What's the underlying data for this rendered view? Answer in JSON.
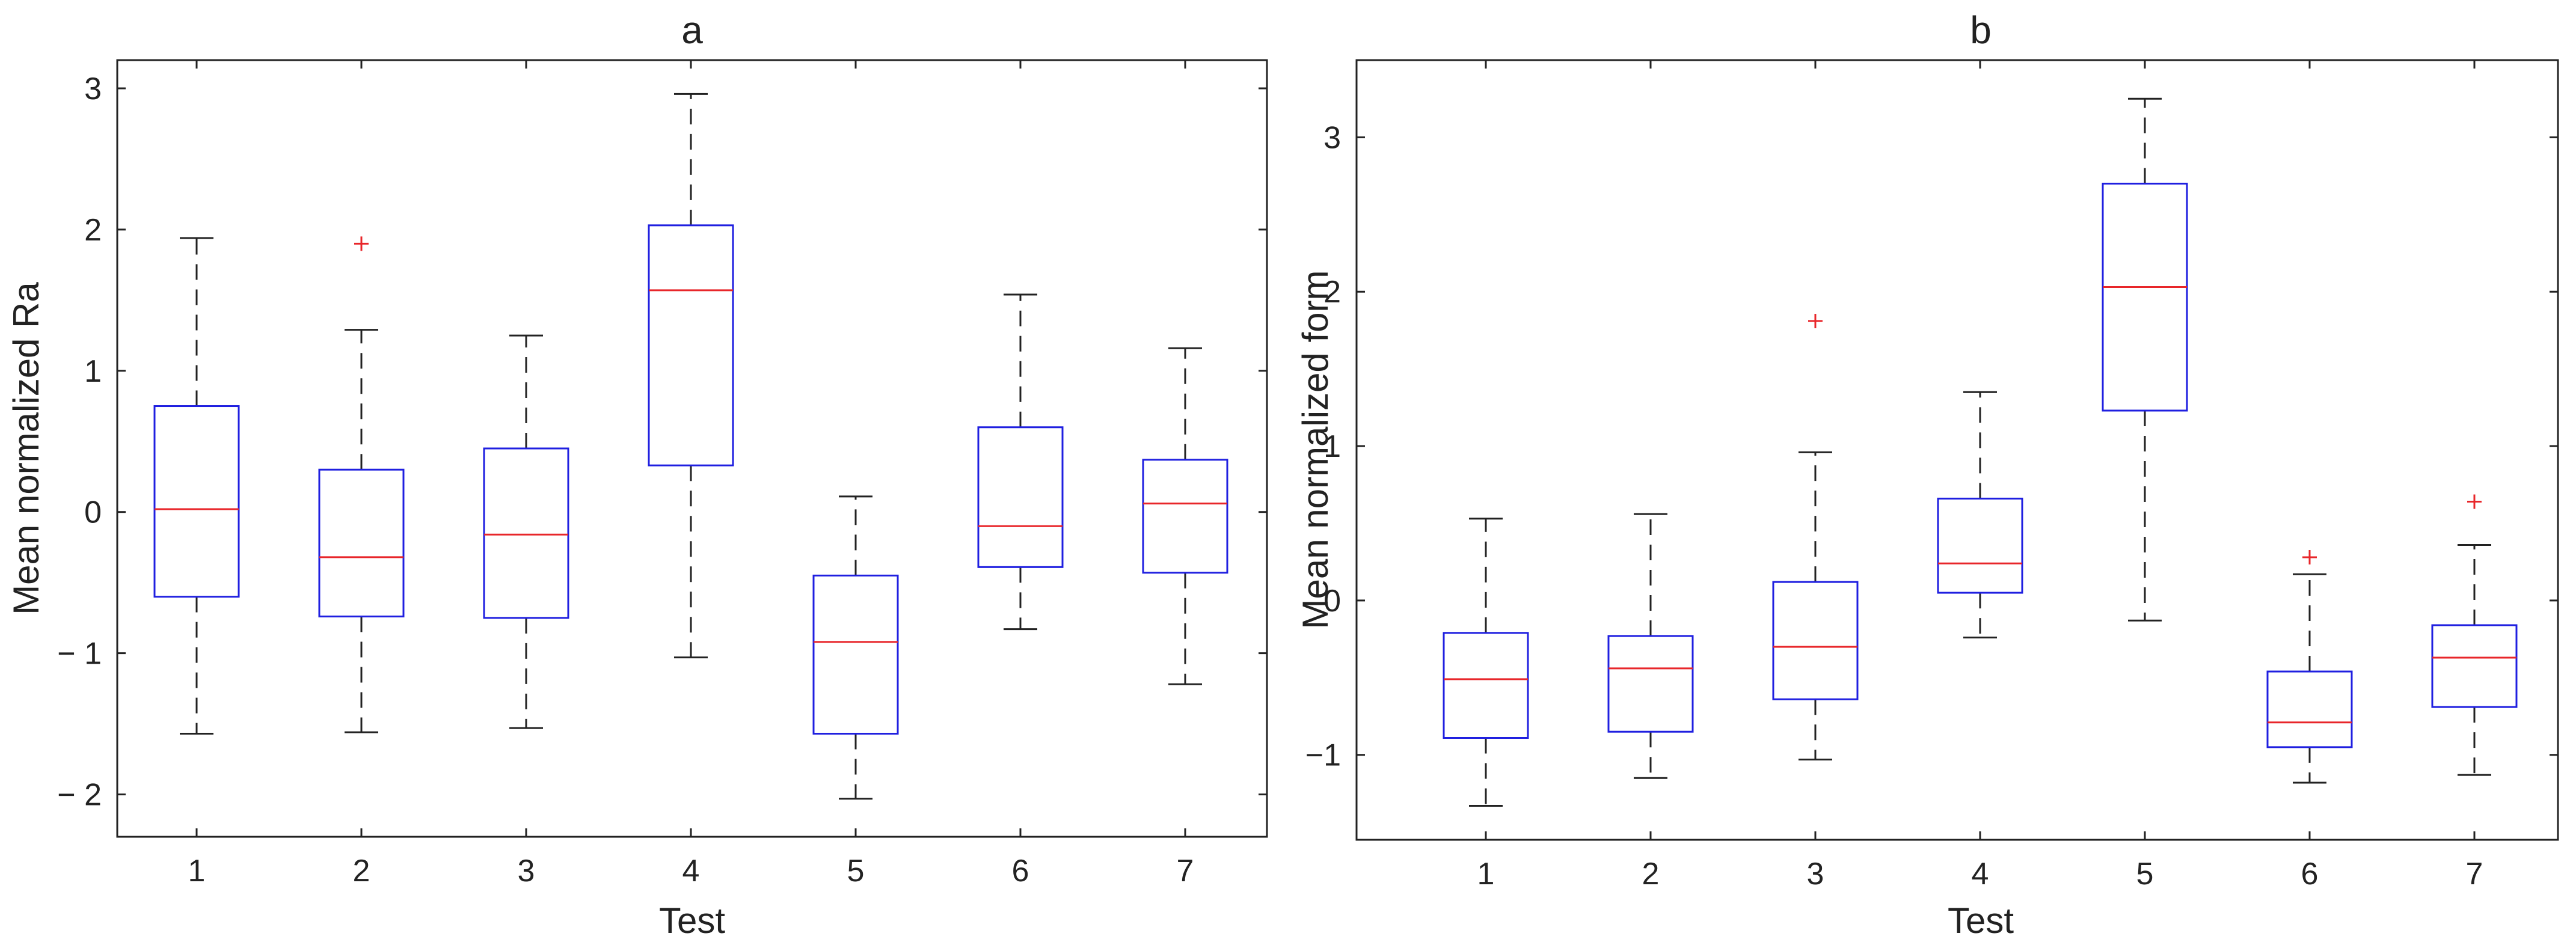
{
  "chart_data": [
    {
      "type": "boxplot",
      "title": "a",
      "xlabel": "Test",
      "ylabel": "Mean normalized Ra",
      "ylim": [
        -2.3,
        3.2
      ],
      "yticks": [
        -2,
        -1,
        0,
        1,
        2,
        3
      ],
      "ytick_labels": [
        "− 2",
        "− 1",
        "0",
        "1",
        "2",
        "3"
      ],
      "categories": [
        "1",
        "2",
        "3",
        "4",
        "5",
        "6",
        "7"
      ],
      "boxes": [
        {
          "category": "1",
          "whisker_low": -1.57,
          "q1": -0.6,
          "median": 0.02,
          "q3": 0.75,
          "whisker_high": 1.94,
          "outliers": []
        },
        {
          "category": "2",
          "whisker_low": -1.56,
          "q1": -0.74,
          "median": -0.32,
          "q3": 0.3,
          "whisker_high": 1.29,
          "outliers": [
            1.9
          ]
        },
        {
          "category": "3",
          "whisker_low": -1.53,
          "q1": -0.75,
          "median": -0.16,
          "q3": 0.45,
          "whisker_high": 1.25,
          "outliers": []
        },
        {
          "category": "4",
          "whisker_low": -1.03,
          "q1": 0.33,
          "median": 1.57,
          "q3": 2.03,
          "whisker_high": 2.96,
          "outliers": []
        },
        {
          "category": "5",
          "whisker_low": -2.03,
          "q1": -1.57,
          "median": -0.92,
          "q3": -0.45,
          "whisker_high": 0.11,
          "outliers": []
        },
        {
          "category": "6",
          "whisker_low": -0.83,
          "q1": -0.39,
          "median": -0.1,
          "q3": 0.6,
          "whisker_high": 1.54,
          "outliers": []
        },
        {
          "category": "7",
          "whisker_low": -1.22,
          "q1": -0.43,
          "median": 0.06,
          "q3": 0.37,
          "whisker_high": 1.16,
          "outliers": []
        }
      ]
    },
    {
      "type": "boxplot",
      "title": "b",
      "xlabel": "Test",
      "ylabel": "Mean normalized form",
      "ylim": [
        -1.55,
        3.5
      ],
      "yticks": [
        -1,
        0,
        1,
        2,
        3
      ],
      "ytick_labels": [
        "−1",
        "0",
        "1",
        "2",
        "3"
      ],
      "categories": [
        "1",
        "2",
        "3",
        "4",
        "5",
        "6",
        "7"
      ],
      "boxes": [
        {
          "category": "1",
          "whisker_low": -1.33,
          "q1": -0.89,
          "median": -0.51,
          "q3": -0.21,
          "whisker_high": 0.53,
          "outliers": []
        },
        {
          "category": "2",
          "whisker_low": -1.15,
          "q1": -0.85,
          "median": -0.44,
          "q3": -0.23,
          "whisker_high": 0.56,
          "outliers": []
        },
        {
          "category": "3",
          "whisker_low": -1.03,
          "q1": -0.64,
          "median": -0.3,
          "q3": 0.12,
          "whisker_high": 0.96,
          "outliers": [
            1.81
          ]
        },
        {
          "category": "4",
          "whisker_low": -0.24,
          "q1": 0.05,
          "median": 0.24,
          "q3": 0.66,
          "whisker_high": 1.35,
          "outliers": []
        },
        {
          "category": "5",
          "whisker_low": -0.13,
          "q1": 1.23,
          "median": 2.03,
          "q3": 2.7,
          "whisker_high": 3.25,
          "outliers": []
        },
        {
          "category": "6",
          "whisker_low": -1.18,
          "q1": -0.95,
          "median": -0.79,
          "q3": -0.46,
          "whisker_high": 0.17,
          "outliers": [
            0.28
          ]
        },
        {
          "category": "7",
          "whisker_low": -1.13,
          "q1": -0.69,
          "median": -0.37,
          "q3": -0.16,
          "whisker_high": 0.36,
          "outliers": [
            0.64
          ]
        }
      ]
    }
  ],
  "colors": {
    "box": "#1f1fe0",
    "median": "#e8262a",
    "whisker": "#222222",
    "outlier": "#e8262a",
    "axis": "#222222"
  }
}
